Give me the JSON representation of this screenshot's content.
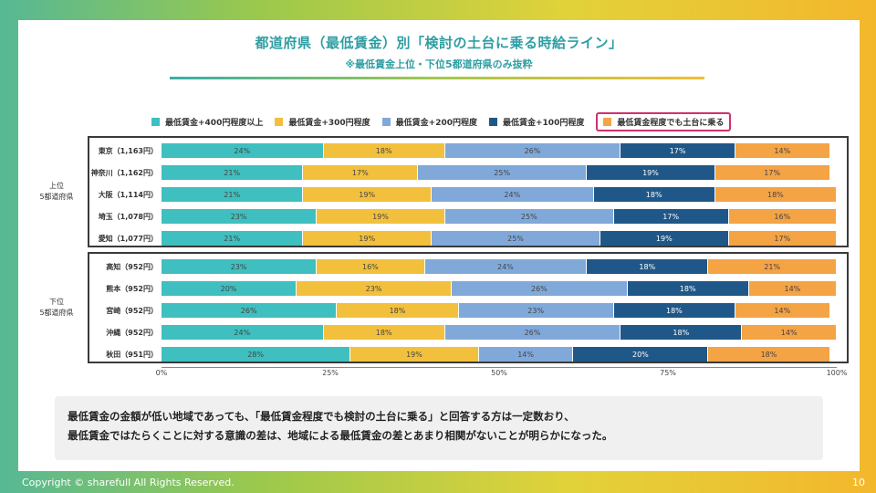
{
  "slide": {
    "title": "都道府県（最低賃金）別「検討の土台に乗る時給ライン」",
    "subtitle": "※最低賃金上位・下位5都道府県のみ抜粋",
    "note_line1": "最低賃金の金額が低い地域であっても、「最低賃金程度でも検討の土台に乗る」と回答する方は一定数おり、",
    "note_line2": "最低賃金ではたらくことに対する意識の差は、地域による最低賃金の差とあまり相関がないことが明らかになった。",
    "copyright": "Copyright © sharefull All Rights Reserved.",
    "page_number": "10"
  },
  "chart_data": {
    "type": "bar",
    "orientation": "horizontal",
    "stacked": true,
    "title": "",
    "xlabel": "",
    "ylabel": "",
    "xlim": [
      0,
      100
    ],
    "x_ticks": [
      "0%",
      "25%",
      "50%",
      "75%",
      "100%"
    ],
    "legend_position": "top",
    "highlighted_series": 4,
    "series": [
      {
        "name": "最低賃金+400円程度以上",
        "color": "#3fbfbf"
      },
      {
        "name": "最低賃金+300円程度",
        "color": "#f2c03c"
      },
      {
        "name": "最低賃金+200円程度",
        "color": "#80a9da"
      },
      {
        "name": "最低賃金+100円程度",
        "color": "#1f5888"
      },
      {
        "name": "最低賃金程度でも土台に乗る",
        "color": "#f4a345"
      }
    ],
    "groups": [
      {
        "label_line1": "上位",
        "label_line2": "5都道府県",
        "rows": [
          {
            "label": "東京（1,163円）",
            "values": [
              24,
              18,
              26,
              17,
              14
            ]
          },
          {
            "label": "神奈川（1,162円）",
            "values": [
              21,
              17,
              25,
              19,
              17
            ]
          },
          {
            "label": "大阪（1,114円）",
            "values": [
              21,
              19,
              24,
              18,
              18
            ]
          },
          {
            "label": "埼玉（1,078円）",
            "values": [
              23,
              19,
              25,
              17,
              16
            ]
          },
          {
            "label": "愛知（1,077円）",
            "values": [
              21,
              19,
              25,
              19,
              17
            ]
          }
        ]
      },
      {
        "label_line1": "下位",
        "label_line2": "5都道府県",
        "rows": [
          {
            "label": "高知（952円）",
            "values": [
              23,
              16,
              24,
              18,
              21
            ]
          },
          {
            "label": "熊本（952円）",
            "values": [
              20,
              23,
              26,
              18,
              14
            ]
          },
          {
            "label": "宮崎（952円）",
            "values": [
              26,
              18,
              23,
              18,
              14
            ]
          },
          {
            "label": "沖縄（952円）",
            "values": [
              24,
              18,
              26,
              18,
              14
            ]
          },
          {
            "label": "秋田（951円）",
            "values": [
              28,
              19,
              14,
              20,
              18
            ]
          }
        ]
      }
    ]
  }
}
